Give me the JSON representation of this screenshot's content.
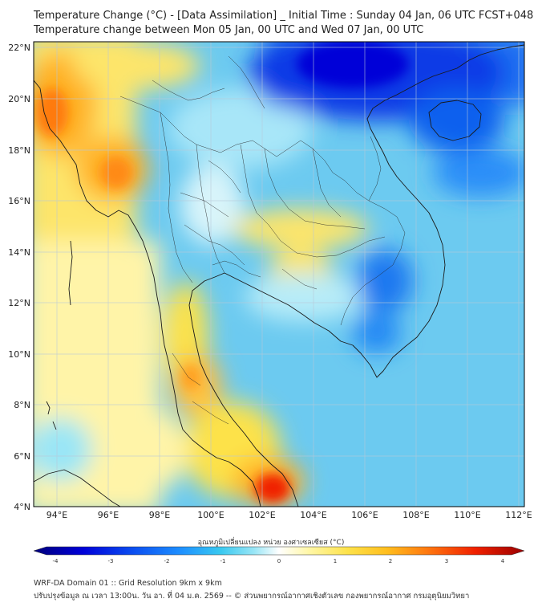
{
  "title_line1": "Temperature Change (°C) - [Data Assimilation] _ Initial Time : Sunday 04 Jan, 06 UTC FCST+048",
  "title_line2": "Temperature change between Mon 05 Jan, 00 UTC and Wed 07 Jan, 00 UTC",
  "lat_labels": [
    "22°N",
    "20°N",
    "18°N",
    "16°N",
    "14°N",
    "12°N",
    "10°N",
    "8°N",
    "6°N",
    "4°N"
  ],
  "lon_labels": [
    "94°E",
    "96°E",
    "98°E",
    "100°E",
    "102°E",
    "104°E",
    "106°E",
    "108°E",
    "110°E",
    "112°E"
  ],
  "colorbar": {
    "label": "อุณหภูมิเปลี่ยนแปลง หน่วย องศาเซลเซียส (°C)",
    "ticks": [
      "-4",
      "-3",
      "-2",
      "-1",
      "0",
      "1",
      "2",
      "3",
      "4"
    ],
    "range": [
      -4,
      4
    ],
    "colors": [
      "#00007a",
      "#0000d8",
      "#0a4cf0",
      "#1e90ff",
      "#38c8f0",
      "#9ae6f6",
      "#ffffff",
      "#fff7a8",
      "#fde24a",
      "#ffbe1e",
      "#ff7a10",
      "#f02000",
      "#9a0000"
    ]
  },
  "footer_line1": "WRF-DA Domain 01 :: Grid Resolution 9km x 9km",
  "footer_line2": "ปรับปรุงข้อมูล ณ เวลา 13:00น. วัน อา. ที่ 04 ม.ค. 2569 -- © ส่วนพยากรณ์อากาศเชิงตัวเลข กองพยากรณ์อากาศ กรมอุตุนิยมวิทยา"
}
